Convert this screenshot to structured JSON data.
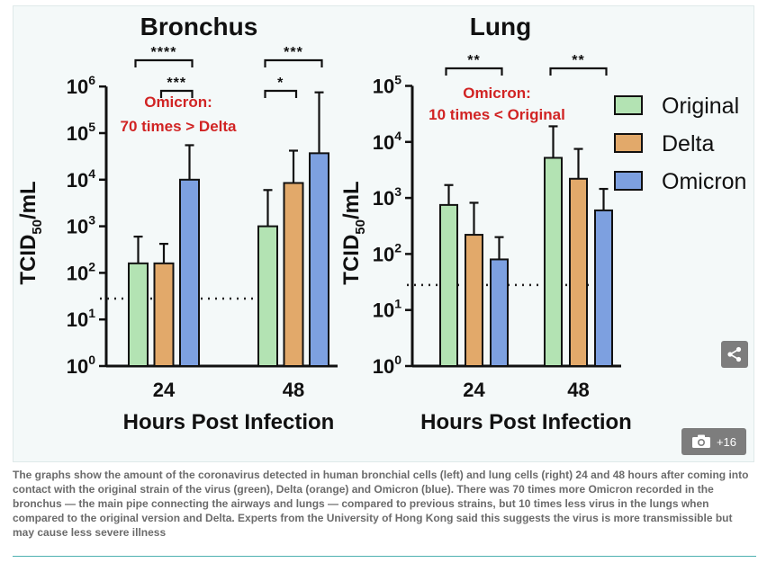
{
  "chart_data": [
    {
      "type": "bar",
      "title": "Bronchus",
      "ylabel": "TCID50/mL",
      "xlabel": "Hours Post Infection",
      "yscale": "log",
      "ylim": [
        1,
        1000000
      ],
      "y_ticks": [
        "10^0",
        "10^1",
        "10^2",
        "10^3",
        "10^4",
        "10^5",
        "10^6"
      ],
      "categories": [
        "24",
        "48"
      ],
      "series": [
        {
          "name": "Original",
          "values": [
            160,
            1000
          ],
          "error_upper": [
            600,
            6000
          ]
        },
        {
          "name": "Delta",
          "values": [
            160,
            8500
          ],
          "error_upper": [
            420,
            42000
          ]
        },
        {
          "name": "Omicron",
          "values": [
            10000,
            37000
          ],
          "error_upper": [
            55000,
            750000
          ]
        }
      ],
      "detection_limit": 28,
      "significance": [
        {
          "label": "****",
          "group": "24",
          "from": "Original",
          "to": "Omicron"
        },
        {
          "label": "***",
          "group": "24",
          "from": "Delta",
          "to": "Omicron"
        },
        {
          "label": "***",
          "group": "48",
          "from": "Original",
          "to": "Omicron"
        },
        {
          "label": "*",
          "group": "48",
          "from": "Original",
          "to": "Delta"
        }
      ],
      "annotation": [
        "Omicron:",
        "70 times > Delta"
      ]
    },
    {
      "type": "bar",
      "title": "Lung",
      "ylabel": "TCID50/mL",
      "xlabel": "Hours Post Infection",
      "yscale": "log",
      "ylim": [
        1,
        100000
      ],
      "y_ticks": [
        "10^0",
        "10^1",
        "10^2",
        "10^3",
        "10^4",
        "10^5"
      ],
      "categories": [
        "24",
        "48"
      ],
      "series": [
        {
          "name": "Original",
          "values": [
            750,
            5200
          ],
          "error_upper": [
            1700,
            19000
          ]
        },
        {
          "name": "Delta",
          "values": [
            220,
            2200
          ],
          "error_upper": [
            820,
            7500
          ]
        },
        {
          "name": "Omicron",
          "values": [
            80,
            600
          ],
          "error_upper": [
            200,
            1450
          ]
        }
      ],
      "detection_limit": 28,
      "significance": [
        {
          "label": "**",
          "group": "24",
          "from": "Original",
          "to": "Omicron"
        },
        {
          "label": "**",
          "group": "48",
          "from": "Original",
          "to": "Omicron"
        }
      ],
      "annotation": [
        "Omicron:",
        "10 times < Original"
      ]
    }
  ],
  "legend": {
    "position": "right",
    "items": [
      {
        "name": "Original",
        "color": "#b3e3b3"
      },
      {
        "name": "Delta",
        "color": "#e2a96a"
      },
      {
        "name": "Omicron",
        "color": "#7da0e0"
      }
    ]
  },
  "colors": {
    "annotation": "#d12424",
    "frame_bg": "#f4f9f9",
    "button_bg": "#7d7d7d",
    "rule": "#4fb1b1"
  },
  "share_button": {
    "icon": "share-icon"
  },
  "gallery_button": {
    "icon": "camera-icon",
    "count": "+16"
  },
  "caption": "The graphs show the amount of the coronavirus detected in human bronchial cells (left) and lung cells (right) 24 and 48 hours after coming into contact with the original strain of the virus (green), Delta (orange) and Omicron (blue). There was 70 times more Omicron recorded in the bronchus — the main pipe connecting the airways and lungs — compared to previous strains, but 10 times less virus in the lungs when compared to the original version and Delta. Experts from the University of Hong Kong said this suggests the virus is more transmissible but may cause less severe illness"
}
